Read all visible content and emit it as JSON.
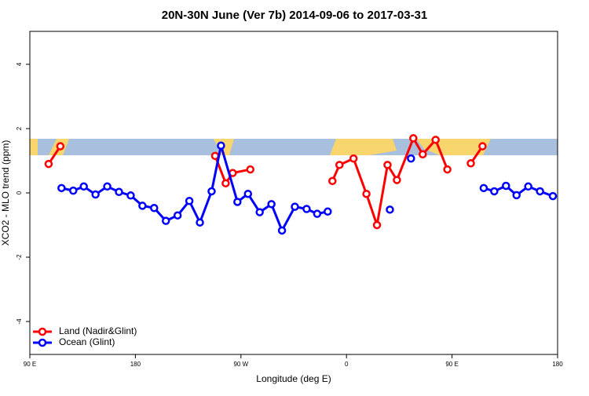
{
  "chart_data": {
    "type": "line",
    "title": "20N-30N June (Ver 7b)   2014-09-06 to 2017-03-31",
    "x_label": "Longitude (deg E)",
    "y_label": "XCO2 - MLO trend (ppm)",
    "xlim": [
      90,
      540
    ],
    "xticks": [
      {
        "value": 90,
        "label": "90 E"
      },
      180,
      {
        "value": 270,
        "label": "90 W"
      },
      {
        "value": 360,
        "label": "0"
      },
      {
        "value": 450,
        "label": "90 E"
      },
      {
        "value": 540,
        "label": "180"
      }
    ],
    "ylim": [
      -5,
      5
    ],
    "yticks": [
      -4,
      -2,
      0,
      2,
      4
    ],
    "legend": "bottom-left",
    "series": [
      {
        "name": "Land (Nadir&Glint)",
        "color": "#ff0000",
        "x": [
          106,
          116,
          null,
          248,
          257,
          263,
          278,
          null,
          348,
          354,
          366,
          377,
          386,
          395,
          403,
          417,
          425,
          436,
          446,
          null,
          466,
          476
        ],
        "values": [
          0.9,
          1.45,
          null,
          1.15,
          0.3,
          0.62,
          0.73,
          null,
          0.37,
          0.87,
          1.07,
          -0.03,
          -1.0,
          0.87,
          0.4,
          1.7,
          1.2,
          1.65,
          0.73,
          null,
          0.92,
          1.45
        ]
      },
      {
        "name": "Ocean (Glint)",
        "color": "#0000ff",
        "x": [
          117,
          127,
          136,
          146,
          156,
          166,
          176,
          186,
          196,
          206,
          216,
          226,
          235,
          245,
          253,
          267,
          276,
          286,
          296,
          305,
          316,
          326,
          335,
          344,
          null,
          397,
          null,
          415,
          null,
          477,
          486,
          496,
          505,
          515,
          525,
          536
        ],
        "values": [
          0.15,
          0.07,
          0.2,
          -0.05,
          0.2,
          0.03,
          -0.08,
          -0.4,
          -0.47,
          -0.87,
          -0.7,
          -0.25,
          -0.92,
          0.05,
          1.47,
          -0.28,
          -0.03,
          -0.6,
          -0.35,
          -1.17,
          -0.43,
          -0.5,
          -0.65,
          -0.58,
          null,
          -0.52,
          null,
          1.07,
          null,
          0.15,
          0.05,
          0.22,
          -0.07,
          0.2,
          0.05,
          -0.1
        ]
      }
    ]
  }
}
